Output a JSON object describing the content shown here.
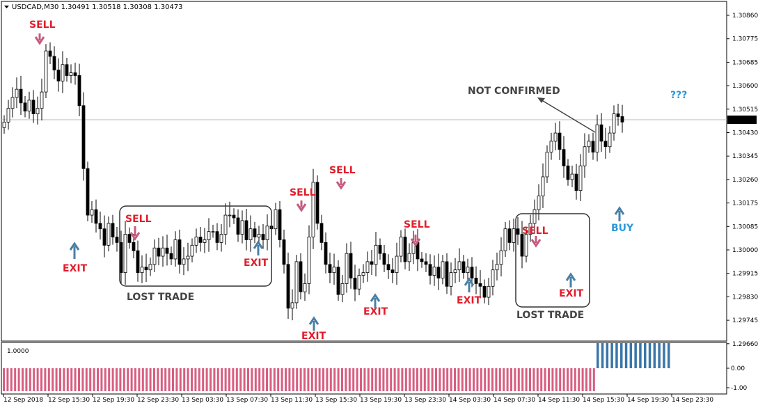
{
  "window": {
    "symbol_line": "USDCAD,M30  1.30491 1.30518 1.30308 1.30473",
    "menu_icon": "triangle-down-icon"
  },
  "chart_data": {
    "type": "candlestick",
    "symbol": "USDCAD",
    "timeframe": "M30",
    "ohlc_header": {
      "open": 1.30491,
      "high": 1.30518,
      "low": 1.30308,
      "close": 1.30473
    },
    "current_price_label": "1.30473",
    "ylim": [
      1.296,
      1.309
    ],
    "y_ticks": [
      "1.30860",
      "1.30775",
      "1.30685",
      "1.30600",
      "1.30515",
      "1.30430",
      "1.30345",
      "1.30260",
      "1.30175",
      "1.30085",
      "1.30000",
      "1.29915",
      "1.29830",
      "1.29745",
      "1.29660"
    ],
    "x_ticks": [
      "12 Sep 2018",
      "12 Sep 15:30",
      "12 Sep 19:30",
      "12 Sep 23:30",
      "13 Sep 03:30",
      "13 Sep 07:30",
      "13 Sep 11:30",
      "13 Sep 15:30",
      "13 Sep 19:30",
      "13 Sep 23:30",
      "14 Sep 03:30",
      "14 Sep 07:30",
      "14 Sep 11:30",
      "14 Sep 15:30",
      "14 Sep 19:30",
      "14 Sep 23:30"
    ],
    "grid": false,
    "up_color": "#ffffff",
    "down_color": "#000000",
    "closes": [
      1.3047,
      1.3052,
      1.3056,
      1.3059,
      1.3054,
      1.3051,
      1.3055,
      1.305,
      1.3052,
      1.3058,
      1.3073,
      1.3071,
      1.3066,
      1.3062,
      1.3068,
      1.3064,
      1.3065,
      1.3064,
      1.3053,
      1.303,
      1.3013,
      1.3015,
      1.301,
      1.3008,
      1.3002,
      1.301,
      1.3005,
      1.3003,
      1.2992,
      1.3006,
      1.3003,
      1.3,
      1.2992,
      1.2994,
      1.2993,
      1.2995,
      1.3001,
      1.2998,
      1.3001,
      1.2999,
      1.2997,
      1.3004,
      1.2995,
      1.2997,
      1.2998,
      1.3002,
      1.3005,
      1.3003,
      1.3004,
      1.3007,
      1.3007,
      1.3003,
      1.3006,
      1.3013,
      1.3013,
      1.3012,
      1.3006,
      1.3011,
      1.3004,
      1.3008,
      1.3005,
      1.3006,
      1.3004,
      1.3009,
      1.3008,
      1.3015,
      1.3004,
      1.2995,
      1.2979,
      1.2981,
      1.2996,
      1.2985,
      1.2988,
      1.3005,
      1.3025,
      1.301,
      1.3003,
      1.2995,
      1.2992,
      1.2994,
      1.2984,
      1.2988,
      1.2999,
      1.299,
      1.2986,
      1.2991,
      1.2992,
      1.2996,
      1.2995,
      1.3002,
      1.2999,
      1.2995,
      1.2993,
      1.2992,
      1.2998,
      1.3005,
      1.2996,
      1.2999,
      1.3003,
      1.2997,
      1.2996,
      1.2995,
      1.2991,
      1.2994,
      1.299,
      1.2996,
      1.2987,
      1.2992,
      1.2993,
      1.2996,
      1.2992,
      1.2994,
      1.299,
      1.2988,
      1.2987,
      1.2983,
      1.2987,
      1.2993,
      1.2995,
      1.3,
      1.3008,
      1.3003,
      1.3008,
      1.3006,
      1.2998,
      1.3006,
      1.301,
      1.3015,
      1.302,
      1.3027,
      1.3036,
      1.304,
      1.3043,
      1.3037,
      1.3031,
      1.3026,
      1.3028,
      1.3022,
      1.3031,
      1.3038,
      1.304,
      1.3036,
      1.3046,
      1.304,
      1.3038,
      1.3043,
      1.305,
      1.3049,
      1.3047
    ],
    "annotations": [
      {
        "label": "SELL",
        "kind": "sell",
        "color": "#e21d2b",
        "arrow_color": "#c45c7e"
      },
      {
        "label": "EXIT",
        "kind": "exit",
        "color": "#e21d2b",
        "arrow_color": "#4a7fa6"
      },
      {
        "label": "SELL",
        "kind": "sell",
        "color": "#e21d2b",
        "arrow_color": "#c45c7e"
      },
      {
        "label": "EXIT",
        "kind": "exit",
        "color": "#e21d2b",
        "arrow_color": "#4a7fa6"
      },
      {
        "label": "SELL",
        "kind": "sell",
        "color": "#e21d2b",
        "arrow_color": "#c45c7e"
      },
      {
        "label": "SELL",
        "kind": "sell",
        "color": "#e21d2b",
        "arrow_color": "#c45c7e"
      },
      {
        "label": "EXIT",
        "kind": "exit",
        "color": "#e21d2b",
        "arrow_color": "#4a7fa6"
      },
      {
        "label": "EXIT",
        "kind": "exit",
        "color": "#e21d2b",
        "arrow_color": "#4a7fa6"
      },
      {
        "label": "SELL",
        "kind": "sell",
        "color": "#e21d2b",
        "arrow_color": "#c45c7e"
      },
      {
        "label": "EXIT",
        "kind": "exit",
        "color": "#e21d2b",
        "arrow_color": "#4a7fa6"
      },
      {
        "label": "SELL",
        "kind": "sell",
        "color": "#e21d2b",
        "arrow_color": "#c45c7e"
      },
      {
        "label": "EXIT",
        "kind": "exit",
        "color": "#e21d2b",
        "arrow_color": "#4a7fa6"
      },
      {
        "label": "BUY",
        "kind": "buy",
        "color": "#2a9ad8",
        "arrow_color": "#4a7fa6"
      },
      {
        "label": "NOT CONFIRMED",
        "kind": "note",
        "color": "#444444",
        "arrow_color": "#444444"
      },
      {
        "label": "???",
        "kind": "note",
        "color": "#2a9ad8",
        "arrow_color": ""
      }
    ],
    "boxes": [
      {
        "label": "LOST TRADE"
      },
      {
        "label": "LOST TRADE"
      }
    ],
    "indicator": {
      "label": "1.0000",
      "ylim": [
        -1.0,
        1.0
      ],
      "y_ticks": [
        "0.00",
        "-1.00"
      ],
      "top_tick": "1.0000",
      "neg_color": "#d85e80",
      "pos_color": "#3a75a8",
      "neg_bars": 158,
      "pos_bars": 16
    }
  }
}
